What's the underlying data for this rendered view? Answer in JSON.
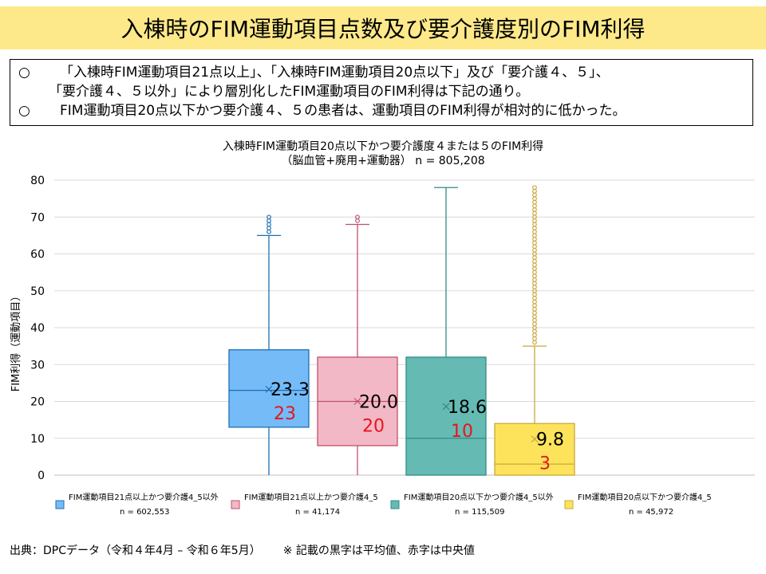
{
  "page_title": "入棟時のFIM運動項目点数及び要介護度別のFIM利得",
  "summary": {
    "bullet": "○",
    "line1": "「入棟時FIM運動項目21点以上」、「入棟時FIM運動項目20点以下」及び「要介護４、５」、",
    "line2": "「要介護４、５以外」により層別化したFIM運動項目のFIM利得は下記の通り。",
    "line3": "FIM運動項目20点以下かつ要介護４、５の患者は、運動項目のFIM利得が相対的に低かった。"
  },
  "chart_data": {
    "type": "box",
    "title": "入棟時FIM運動項目20点以下かつ要介護度４または５のFIM利得",
    "subtitle": "（脳血管+廃用+運動器） n = 805,208",
    "ylabel": "FIM利得（運動項目）",
    "ylim": [
      0,
      80
    ],
    "yticks": [
      0,
      10,
      20,
      30,
      40,
      50,
      60,
      70,
      80
    ],
    "grid": true,
    "legend_position": "bottom",
    "series": [
      {
        "name": "FIM運動項目21点以上かつ要介護4_5以外",
        "n_label": "n = 602,553",
        "color": "#74bbf8",
        "stroke": "#1f6fb5",
        "q1": 13,
        "median": 23,
        "q3": 34,
        "whisker_low": 0,
        "whisker_high": 65,
        "mean": 23.3,
        "mean_label": "23.3",
        "median_label": "23",
        "outliers": [
          66,
          67,
          68,
          69,
          70
        ]
      },
      {
        "name": "FIM運動項目21点以上かつ要介護4_5",
        "n_label": "n = 41,174",
        "color": "#f2b8c6",
        "stroke": "#c0506c",
        "q1": 8,
        "median": 20,
        "q3": 32,
        "whisker_low": 0,
        "whisker_high": 68,
        "mean": 20.0,
        "mean_label": "20.0",
        "median_label": "20",
        "outliers": [
          69,
          70
        ]
      },
      {
        "name": "FIM運動項目20点以下かつ要介護4_5以外",
        "n_label": "n = 115,509",
        "color": "#66bab4",
        "stroke": "#2f8c86",
        "q1": 0,
        "median": 10,
        "q3": 32,
        "whisker_low": 0,
        "whisker_high": 78,
        "mean": 18.6,
        "mean_label": "18.6",
        "median_label": "10",
        "outliers": []
      },
      {
        "name": "FIM運動項目20点以下かつ要介護4_5",
        "n_label": "n = 45,972",
        "color": "#fde35c",
        "stroke": "#c9a93a",
        "q1": 0,
        "median": 3,
        "q3": 14,
        "whisker_low": 0,
        "whisker_high": 35,
        "mean": 9.8,
        "mean_label": "9.8",
        "median_label": "3",
        "outliers": [
          36,
          37,
          38,
          39,
          40,
          41,
          42,
          43,
          44,
          45,
          46,
          47,
          48,
          49,
          50,
          51,
          52,
          53,
          54,
          55,
          56,
          57,
          58,
          59,
          60,
          61,
          62,
          63,
          64,
          65,
          66,
          67,
          68,
          69,
          70,
          71,
          72,
          73,
          74,
          75,
          76,
          77,
          78
        ]
      }
    ]
  },
  "footer": {
    "source": "出典：DPCデータ（令和４年4月 – 令和６年5月）",
    "note": "※ 記載の黒字は平均値、赤字は中央値"
  },
  "colors": {
    "title_band": "#fde98a",
    "median_label": "#e8141b",
    "grid": "#d9d9d9"
  }
}
